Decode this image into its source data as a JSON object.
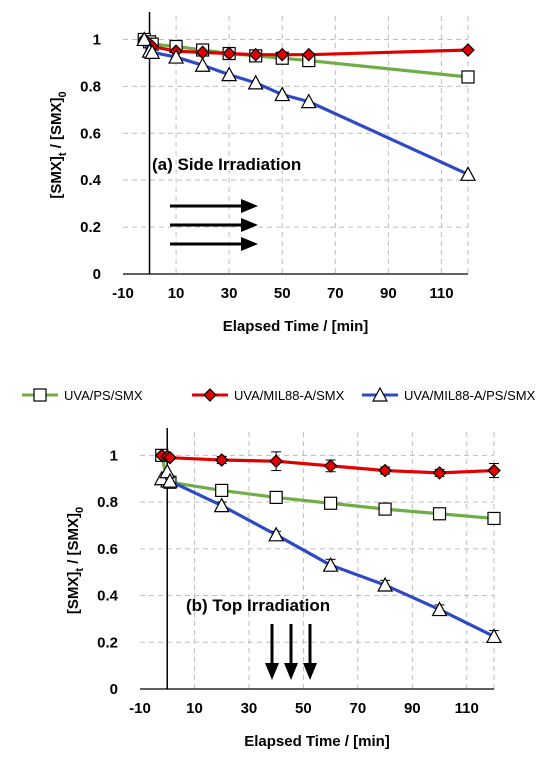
{
  "legend": [
    {
      "name": "UVA/PS/SMX",
      "color": "#70ad47",
      "marker": "square"
    },
    {
      "name": "UVA/MIL88-A/SMX",
      "color": "#e00000",
      "marker": "diamond"
    },
    {
      "name": "UVA/MIL88-A/PS/SMX",
      "color": "#2e49c3",
      "marker": "triangle"
    }
  ],
  "chart_data": [
    {
      "type": "line",
      "annotation": "(a)   Side Irradiation",
      "arrow_direction": "right",
      "xlabel": "Elapsed Time / [min]",
      "ylabel_main": "[SMX]",
      "ylabel_sub_t": "t",
      "ylabel_mid": " / [SMX]",
      "ylabel_sub_0": "0",
      "xlim": [
        -10,
        120
      ],
      "ylim": [
        0,
        1.1
      ],
      "xticks": [
        -10,
        10,
        30,
        50,
        70,
        90,
        110
      ],
      "yticks": [
        0,
        0.2,
        0.4,
        0.6,
        0.8,
        1
      ],
      "grid": "dashed",
      "series": [
        {
          "name": "UVA/PS/SMX",
          "x": [
            -2,
            0,
            1,
            10,
            20,
            30,
            40,
            50,
            60,
            120
          ],
          "y": [
            1.0,
            0.99,
            0.98,
            0.97,
            0.955,
            0.94,
            0.93,
            0.92,
            0.91,
            0.84
          ]
        },
        {
          "name": "UVA/MIL88-A/SMX",
          "x": [
            -2,
            0,
            1,
            10,
            20,
            30,
            40,
            50,
            60,
            120
          ],
          "y": [
            1.0,
            0.98,
            0.97,
            0.95,
            0.945,
            0.94,
            0.935,
            0.935,
            0.935,
            0.955
          ]
        },
        {
          "name": "UVA/MIL88-A/PS/SMX",
          "x": [
            -2,
            0,
            1,
            10,
            20,
            30,
            40,
            50,
            60,
            120
          ],
          "y": [
            1.0,
            0.95,
            0.945,
            0.925,
            0.89,
            0.85,
            0.815,
            0.765,
            0.735,
            0.425
          ]
        }
      ]
    },
    {
      "type": "line",
      "annotation": "(b) Top Irradiation",
      "arrow_direction": "down",
      "xlabel": "Elapsed Time / [min]",
      "ylabel_main": "[SMX]",
      "ylabel_sub_t": "t",
      "ylabel_mid": " / [SMX]",
      "ylabel_sub_0": "0",
      "xlim": [
        -10,
        120
      ],
      "ylim": [
        0,
        1.1
      ],
      "xticks": [
        -10,
        10,
        30,
        50,
        70,
        90,
        110
      ],
      "yticks": [
        0,
        0.2,
        0.4,
        0.6,
        0.8,
        1
      ],
      "grid": "dashed",
      "series": [
        {
          "name": "UVA/PS/SMX",
          "x": [
            -2,
            0,
            1,
            20,
            40,
            60,
            80,
            100,
            120
          ],
          "y": [
            1.0,
            0.89,
            0.885,
            0.85,
            0.82,
            0.795,
            0.77,
            0.75,
            0.73
          ],
          "err": [
            0,
            0,
            0,
            0.015,
            0.015,
            0.015,
            0.01,
            0.01,
            0.01
          ]
        },
        {
          "name": "UVA/MIL88-A/SMX",
          "x": [
            -2,
            0,
            1,
            20,
            40,
            60,
            80,
            100,
            120
          ],
          "y": [
            1.0,
            0.995,
            0.99,
            0.98,
            0.975,
            0.955,
            0.935,
            0.925,
            0.935
          ],
          "err": [
            0,
            0,
            0,
            0.015,
            0.04,
            0.025,
            0.015,
            0.015,
            0.03
          ]
        },
        {
          "name": "UVA/MIL88-A/PS/SMX",
          "x": [
            -2,
            0,
            1,
            20,
            40,
            60,
            80,
            100,
            120
          ],
          "y": [
            0.9,
            0.93,
            0.89,
            0.785,
            0.66,
            0.53,
            0.445,
            0.34,
            0.225
          ],
          "err": [
            0,
            0,
            0,
            0.015,
            0.015,
            0.025,
            0.02,
            0.02,
            0.025
          ]
        }
      ]
    }
  ]
}
